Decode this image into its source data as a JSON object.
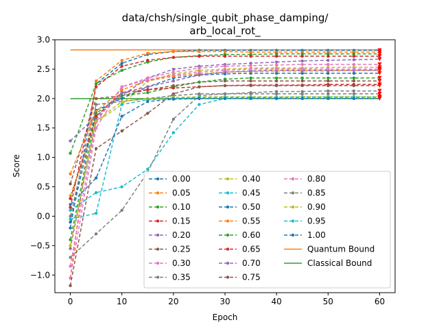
{
  "chart_data": {
    "type": "line",
    "title_lines": [
      "data/chsh/single_qubit_phase_damping/",
      "arb_local_rot_"
    ],
    "xlabel": "Epoch",
    "ylabel": "Score",
    "xlim": [
      -3,
      63
    ],
    "ylim": [
      -1.3,
      3.0
    ],
    "x_ticks": [
      0,
      10,
      20,
      30,
      40,
      50,
      60
    ],
    "y_ticks": [
      -1.0,
      -0.5,
      0.0,
      0.5,
      1.0,
      1.5,
      2.0,
      2.5,
      3.0
    ],
    "x_tick_labels": [
      "0",
      "10",
      "20",
      "30",
      "40",
      "50",
      "60"
    ],
    "y_tick_labels": [
      "−1.0",
      "−0.5",
      "0.0",
      "0.5",
      "1.0",
      "1.5",
      "2.0",
      "2.5",
      "3.0"
    ],
    "x": [
      0,
      5,
      10,
      15,
      20,
      25,
      30,
      35,
      40,
      45,
      50,
      55,
      60
    ],
    "series": [
      {
        "name": "0.00",
        "color": "#1f77b4",
        "values": [
          -0.2,
          2.25,
          2.6,
          2.75,
          2.8,
          2.82,
          2.82,
          2.82,
          2.82,
          2.82,
          2.82,
          2.82,
          2.82
        ]
      },
      {
        "name": "0.05",
        "color": "#ff7f0e",
        "values": [
          -1.05,
          2.3,
          2.65,
          2.77,
          2.8,
          2.8,
          2.8,
          2.79,
          2.79,
          2.79,
          2.79,
          2.79,
          2.79
        ]
      },
      {
        "name": "0.10",
        "color": "#2ca02c",
        "values": [
          1.07,
          2.25,
          2.48,
          2.62,
          2.7,
          2.73,
          2.75,
          2.75,
          2.76,
          2.76,
          2.76,
          2.76,
          2.76
        ]
      },
      {
        "name": "0.15",
        "color": "#d62728",
        "values": [
          0.15,
          2.2,
          2.55,
          2.65,
          2.7,
          2.72,
          2.72,
          2.72,
          2.72,
          2.72,
          2.72,
          2.72,
          2.72
        ]
      },
      {
        "name": "0.20",
        "color": "#9467bd",
        "values": [
          1.28,
          1.7,
          2.05,
          2.35,
          2.5,
          2.55,
          2.58,
          2.6,
          2.62,
          2.64,
          2.65,
          2.66,
          2.67
        ]
      },
      {
        "name": "0.25",
        "color": "#8c564b",
        "values": [
          0.55,
          2.0,
          2.05,
          2.15,
          2.22,
          2.28,
          2.3,
          2.3,
          2.3,
          2.3,
          2.3,
          2.3,
          2.3
        ]
      },
      {
        "name": "0.30",
        "color": "#e377c2",
        "values": [
          -1.05,
          1.5,
          2.2,
          2.35,
          2.45,
          2.52,
          2.55,
          2.56,
          2.57,
          2.58,
          2.58,
          2.58,
          2.58
        ]
      },
      {
        "name": "0.35",
        "color": "#7f7f7f",
        "values": [
          -0.7,
          -0.3,
          0.1,
          0.75,
          1.65,
          2.05,
          2.08,
          2.1,
          2.12,
          2.12,
          2.13,
          2.13,
          2.13
        ]
      },
      {
        "name": "0.40",
        "color": "#bcbd22",
        "values": [
          0.35,
          1.6,
          1.9,
          2.3,
          2.42,
          2.48,
          2.5,
          2.52,
          2.52,
          2.52,
          2.53,
          2.53,
          2.53
        ]
      },
      {
        "name": "0.45",
        "color": "#17becf",
        "values": [
          0.1,
          0.4,
          0.5,
          0.8,
          1.42,
          1.9,
          2.0,
          2.02,
          2.02,
          2.03,
          2.03,
          2.03,
          2.03
        ]
      },
      {
        "name": "0.50",
        "color": "#1f77b4",
        "values": [
          -0.1,
          1.8,
          2.0,
          2.2,
          2.35,
          2.4,
          2.42,
          2.43,
          2.43,
          2.43,
          2.43,
          2.43,
          2.43
        ]
      },
      {
        "name": "0.55",
        "color": "#ff7f0e",
        "values": [
          0.72,
          1.78,
          2.15,
          2.3,
          2.38,
          2.42,
          2.45,
          2.46,
          2.47,
          2.47,
          2.47,
          2.48,
          2.48
        ]
      },
      {
        "name": "0.60",
        "color": "#2ca02c",
        "values": [
          -0.4,
          1.75,
          2.05,
          2.1,
          2.2,
          2.28,
          2.33,
          2.35,
          2.35,
          2.35,
          2.35,
          2.35,
          2.35
        ]
      },
      {
        "name": "0.65",
        "color": "#d62728",
        "values": [
          0.3,
          1.7,
          2.1,
          2.15,
          2.18,
          2.2,
          2.22,
          2.23,
          2.23,
          2.23,
          2.24,
          2.24,
          2.24
        ]
      },
      {
        "name": "0.70",
        "color": "#9467bd",
        "values": [
          -0.55,
          1.65,
          2.1,
          2.2,
          2.3,
          2.4,
          2.45,
          2.47,
          2.48,
          2.48,
          2.48,
          2.48,
          2.48
        ]
      },
      {
        "name": "0.75",
        "color": "#8c564b",
        "values": [
          -1.18,
          1.15,
          1.45,
          1.75,
          2.08,
          2.2,
          2.22,
          2.22,
          2.22,
          2.22,
          2.22,
          2.22,
          2.22
        ]
      },
      {
        "name": "0.80",
        "color": "#e377c2",
        "values": [
          -0.85,
          1.6,
          2.2,
          2.32,
          2.4,
          2.45,
          2.48,
          2.5,
          2.5,
          2.5,
          2.5,
          2.5,
          2.5
        ]
      },
      {
        "name": "0.85",
        "color": "#7f7f7f",
        "values": [
          0.0,
          1.9,
          1.95,
          2.0,
          2.05,
          2.08,
          2.08,
          2.08,
          2.08,
          2.08,
          2.08,
          2.08,
          2.08
        ]
      },
      {
        "name": "0.90",
        "color": "#bcbd22",
        "values": [
          -0.5,
          1.62,
          1.95,
          2.0,
          2.02,
          2.03,
          2.03,
          2.03,
          2.03,
          2.03,
          2.03,
          2.03,
          2.03
        ]
      },
      {
        "name": "0.95",
        "color": "#17becf",
        "values": [
          -0.05,
          0.05,
          1.9,
          1.98,
          2.0,
          2.02,
          2.02,
          2.02,
          2.02,
          2.02,
          2.02,
          2.02,
          2.02
        ]
      },
      {
        "name": "1.00",
        "color": "#1f77b4",
        "values": [
          0.2,
          0.65,
          1.7,
          1.95,
          1.99,
          2.0,
          2.0,
          2.0,
          2.0,
          2.0,
          2.0,
          2.0,
          2.0
        ]
      }
    ],
    "bounds": [
      {
        "name": "Quantum Bound",
        "color": "#ff7f0e",
        "value": 2.828
      },
      {
        "name": "Classical Bound",
        "color": "#2ca02c",
        "value": 2.0
      }
    ],
    "end_marker_color": "#ff0000",
    "legend_position": "lower-right",
    "legend_columns": 3,
    "grid": false
  }
}
